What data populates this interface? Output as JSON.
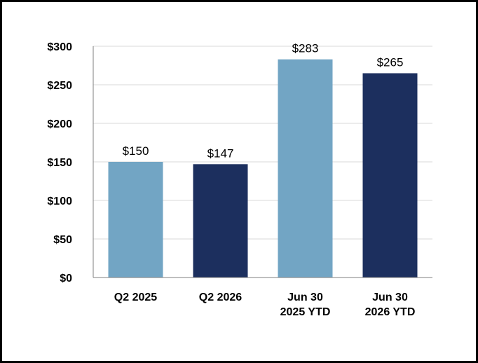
{
  "chart_data": {
    "type": "bar",
    "categories": [
      [
        "Q2 2025"
      ],
      [
        "Q2 2026"
      ],
      [
        "Jun 30",
        "2025 YTD"
      ],
      [
        "Jun 30",
        "2026 YTD"
      ]
    ],
    "values": [
      150,
      147,
      283,
      265
    ],
    "data_labels": [
      "$150",
      "$147",
      "$283",
      "$265"
    ],
    "bar_colors": [
      "#72a5c4",
      "#1c2f5e",
      "#72a5c4",
      "#1c2f5e"
    ],
    "yticks": [
      0,
      50,
      100,
      150,
      200,
      250,
      300
    ],
    "ytick_labels": [
      "$0",
      "$50",
      "$100",
      "$150",
      "$200",
      "$250",
      "$300"
    ],
    "ylim": [
      0,
      300
    ],
    "grid": true,
    "title": "",
    "xlabel": "",
    "ylabel": "",
    "legend": "none"
  }
}
